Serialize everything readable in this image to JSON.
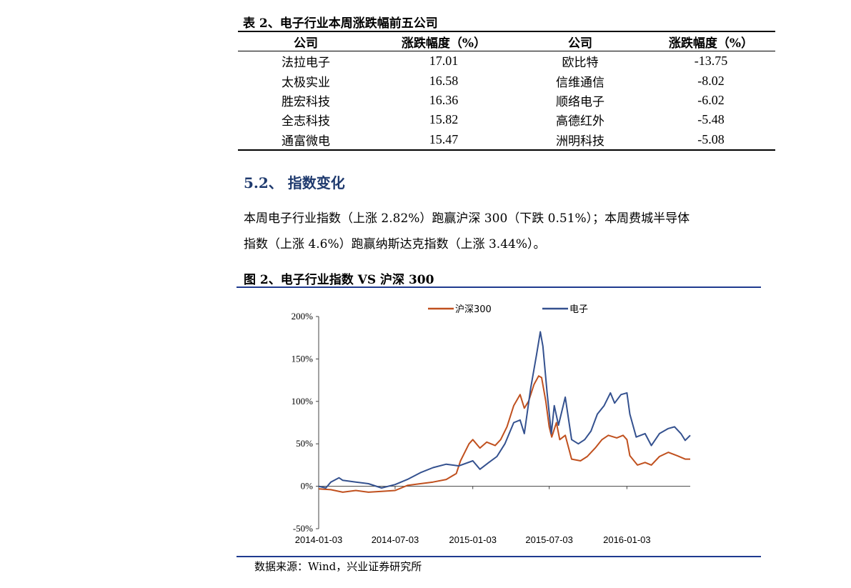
{
  "table": {
    "caption": "表 2、电子行业本周涨跌幅前五公司",
    "headers": [
      "公司",
      "涨跌幅度（%）",
      "公司",
      "涨跌幅度（%）"
    ],
    "rows": [
      [
        "法拉电子",
        "17.01",
        "欧比特",
        "-13.75"
      ],
      [
        "太极实业",
        "16.58",
        "信维通信",
        "-8.02"
      ],
      [
        "胜宏科技",
        "16.36",
        "顺络电子",
        "-6.02"
      ],
      [
        "全志科技",
        "15.82",
        "高德红外",
        "-5.48"
      ],
      [
        "通富微电",
        "15.47",
        "洲明科技",
        "-5.08"
      ]
    ]
  },
  "section": {
    "heading": "5.2、 指数变化"
  },
  "paragraph": {
    "line1": "本周电子行业指数（上涨 2.82%）跑赢沪深 300（下跌 0.51%）；本周费城半导体",
    "line2": "指数（上涨 4.6%）跑赢纳斯达克指数（上涨 3.44%）。"
  },
  "figure": {
    "caption": "图 2、电子行业指数 VS 沪深 300",
    "source": "数据来源：Wind，兴业证券研究所"
  },
  "colors": {
    "hs300": "#c0501e",
    "electronics": "#34518f",
    "rule": "#1f3a8f"
  },
  "chart_data": {
    "type": "line",
    "title": "",
    "xlabel": "",
    "ylabel": "",
    "ylim": [
      -50,
      200
    ],
    "yticks": [
      "-50%",
      "0%",
      "50%",
      "100%",
      "150%",
      "200%"
    ],
    "ytick_values": [
      -50,
      0,
      50,
      100,
      150,
      200
    ],
    "xticks": [
      "2014-01-03",
      "2014-07-03",
      "2015-01-03",
      "2015-07-03",
      "2016-01-03"
    ],
    "x_range": [
      "2014-01-03",
      "2016-06-01"
    ],
    "legend_position": "top",
    "grid": false,
    "series": [
      {
        "name": "沪深300",
        "points": [
          [
            "2014-01-03",
            -3
          ],
          [
            "2014-02-01",
            -4
          ],
          [
            "2014-03-01",
            -7
          ],
          [
            "2014-04-01",
            -5
          ],
          [
            "2014-05-01",
            -7
          ],
          [
            "2014-06-01",
            -6
          ],
          [
            "2014-07-03",
            -5
          ],
          [
            "2014-08-01",
            1
          ],
          [
            "2014-09-01",
            3
          ],
          [
            "2014-10-01",
            5
          ],
          [
            "2014-11-01",
            8
          ],
          [
            "2014-11-25",
            15
          ],
          [
            "2014-12-05",
            30
          ],
          [
            "2014-12-25",
            50
          ],
          [
            "2015-01-03",
            55
          ],
          [
            "2015-01-20",
            45
          ],
          [
            "2015-02-05",
            52
          ],
          [
            "2015-02-25",
            48
          ],
          [
            "2015-03-10",
            55
          ],
          [
            "2015-03-25",
            70
          ],
          [
            "2015-04-10",
            95
          ],
          [
            "2015-04-25",
            108
          ],
          [
            "2015-05-05",
            92
          ],
          [
            "2015-05-15",
            100
          ],
          [
            "2015-05-28",
            120
          ],
          [
            "2015-06-08",
            130
          ],
          [
            "2015-06-15",
            128
          ],
          [
            "2015-06-25",
            100
          ],
          [
            "2015-07-03",
            70
          ],
          [
            "2015-07-09",
            58
          ],
          [
            "2015-07-20",
            75
          ],
          [
            "2015-07-28",
            55
          ],
          [
            "2015-08-10",
            60
          ],
          [
            "2015-08-25",
            32
          ],
          [
            "2015-09-15",
            30
          ],
          [
            "2015-10-01",
            35
          ],
          [
            "2015-10-20",
            45
          ],
          [
            "2015-11-05",
            55
          ],
          [
            "2015-11-20",
            60
          ],
          [
            "2015-12-10",
            57
          ],
          [
            "2015-12-25",
            60
          ],
          [
            "2016-01-03",
            55
          ],
          [
            "2016-01-10",
            36
          ],
          [
            "2016-01-28",
            25
          ],
          [
            "2016-02-15",
            28
          ],
          [
            "2016-03-01",
            25
          ],
          [
            "2016-03-20",
            35
          ],
          [
            "2016-04-10",
            40
          ],
          [
            "2016-05-01",
            36
          ],
          [
            "2016-05-20",
            32
          ],
          [
            "2016-06-01",
            32
          ]
        ]
      },
      {
        "name": "电子",
        "points": [
          [
            "2014-01-03",
            0
          ],
          [
            "2014-01-20",
            -2
          ],
          [
            "2014-02-01",
            5
          ],
          [
            "2014-02-20",
            10
          ],
          [
            "2014-03-01",
            7
          ],
          [
            "2014-04-01",
            5
          ],
          [
            "2014-05-01",
            3
          ],
          [
            "2014-06-01",
            -2
          ],
          [
            "2014-07-03",
            2
          ],
          [
            "2014-08-01",
            8
          ],
          [
            "2014-09-01",
            16
          ],
          [
            "2014-10-01",
            22
          ],
          [
            "2014-11-01",
            26
          ],
          [
            "2014-12-01",
            24
          ],
          [
            "2015-01-03",
            30
          ],
          [
            "2015-01-20",
            20
          ],
          [
            "2015-02-10",
            28
          ],
          [
            "2015-03-01",
            35
          ],
          [
            "2015-03-20",
            50
          ],
          [
            "2015-04-10",
            75
          ],
          [
            "2015-04-25",
            78
          ],
          [
            "2015-05-05",
            62
          ],
          [
            "2015-05-20",
            115
          ],
          [
            "2015-06-03",
            155
          ],
          [
            "2015-06-12",
            182
          ],
          [
            "2015-06-18",
            165
          ],
          [
            "2015-06-28",
            110
          ],
          [
            "2015-07-08",
            62
          ],
          [
            "2015-07-15",
            95
          ],
          [
            "2015-07-25",
            72
          ],
          [
            "2015-08-10",
            105
          ],
          [
            "2015-08-25",
            55
          ],
          [
            "2015-09-10",
            50
          ],
          [
            "2015-09-25",
            55
          ],
          [
            "2015-10-10",
            65
          ],
          [
            "2015-10-25",
            85
          ],
          [
            "2015-11-10",
            95
          ],
          [
            "2015-11-25",
            110
          ],
          [
            "2015-12-05",
            98
          ],
          [
            "2015-12-20",
            108
          ],
          [
            "2016-01-03",
            110
          ],
          [
            "2016-01-10",
            85
          ],
          [
            "2016-01-25",
            58
          ],
          [
            "2016-02-15",
            62
          ],
          [
            "2016-03-01",
            48
          ],
          [
            "2016-03-20",
            62
          ],
          [
            "2016-04-10",
            68
          ],
          [
            "2016-04-25",
            70
          ],
          [
            "2016-05-10",
            62
          ],
          [
            "2016-05-20",
            54
          ],
          [
            "2016-06-01",
            60
          ]
        ]
      }
    ]
  }
}
